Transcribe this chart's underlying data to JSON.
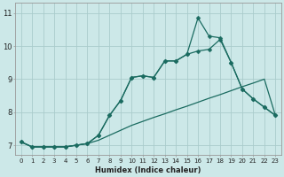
{
  "xlabel": "Humidex (Indice chaleur)",
  "bg_color": "#cce8e8",
  "grid_color": "#aacccc",
  "line_color": "#1a6b60",
  "xlim": [
    -0.5,
    23.5
  ],
  "ylim": [
    6.7,
    11.3
  ],
  "xticks": [
    0,
    1,
    2,
    3,
    4,
    5,
    6,
    7,
    8,
    9,
    10,
    11,
    12,
    13,
    14,
    15,
    16,
    17,
    18,
    19,
    20,
    21,
    22,
    23
  ],
  "yticks": [
    7,
    8,
    9,
    10,
    11
  ],
  "line1_x": [
    0,
    1,
    2,
    3,
    4,
    5,
    6,
    7,
    8,
    9,
    10,
    11,
    12,
    13,
    14,
    15,
    16,
    17,
    18,
    19,
    20,
    21,
    22,
    23
  ],
  "line1_y": [
    7.1,
    6.95,
    6.95,
    6.95,
    6.95,
    7.0,
    7.05,
    7.15,
    7.3,
    7.45,
    7.6,
    7.72,
    7.84,
    7.95,
    8.07,
    8.18,
    8.3,
    8.42,
    8.53,
    8.65,
    8.77,
    8.88,
    9.0,
    7.9
  ],
  "line2_x": [
    0,
    1,
    2,
    3,
    4,
    5,
    6,
    7,
    8,
    9,
    10,
    11,
    12,
    13,
    14,
    15,
    16,
    17,
    18,
    19,
    20,
    21,
    22,
    23
  ],
  "line2_y": [
    7.1,
    6.95,
    6.95,
    6.95,
    6.95,
    7.0,
    7.05,
    7.3,
    7.9,
    8.35,
    9.05,
    9.1,
    9.05,
    9.55,
    9.55,
    9.75,
    9.85,
    9.9,
    10.2,
    9.5,
    8.7,
    8.4,
    8.15,
    7.9
  ],
  "line3_x": [
    0,
    1,
    2,
    3,
    4,
    5,
    6,
    7,
    8,
    9,
    10,
    11,
    12,
    13,
    14,
    15,
    16,
    17,
    18,
    19,
    20,
    21,
    22,
    23
  ],
  "line3_y": [
    7.1,
    6.95,
    6.95,
    6.95,
    6.95,
    7.0,
    7.05,
    7.3,
    7.9,
    8.35,
    9.05,
    9.1,
    9.05,
    9.55,
    9.55,
    9.75,
    10.85,
    10.3,
    10.25,
    9.5,
    8.7,
    8.4,
    8.15,
    7.9
  ],
  "tick_fontsize": 5,
  "xlabel_fontsize": 6,
  "line_width": 0.9,
  "marker_size": 2.5
}
